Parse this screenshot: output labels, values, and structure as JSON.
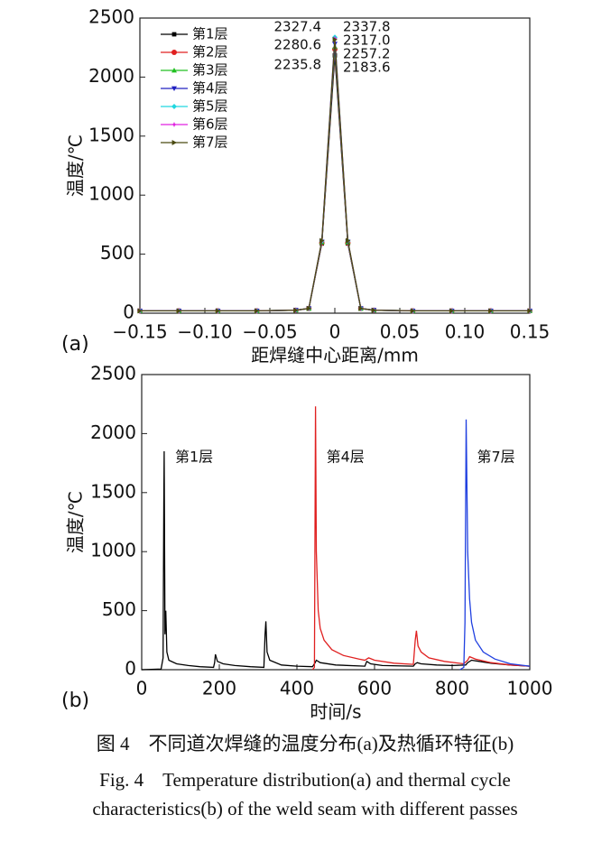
{
  "chart_data": [
    {
      "type": "line",
      "panel_label": "(a)",
      "xlabel": "距焊缝中心距离/mm",
      "ylabel": "温度/℃",
      "x": [
        -0.15,
        -0.12,
        -0.09,
        -0.06,
        -0.03,
        -0.02,
        -0.01,
        0,
        0.01,
        0.02,
        0.03,
        0.06,
        0.09,
        0.12,
        0.15
      ],
      "xlim": [
        -0.15,
        0.15
      ],
      "xticks": [
        {
          "value": -0.15,
          "label": "−0.15"
        },
        {
          "value": -0.1,
          "label": "−0.10"
        },
        {
          "value": -0.05,
          "label": "−0.05"
        },
        0,
        0.05,
        {
          "value": 0.1,
          "label": "0.10"
        },
        0.15
      ],
      "ylim": [
        0,
        2500
      ],
      "yticks": [
        0,
        500,
        1000,
        1500,
        2000,
        2500
      ],
      "legend": "upper left",
      "markers": true,
      "series": [
        {
          "name": "第1层",
          "color": "#000000",
          "marker": "square",
          "values": [
            20,
            20,
            20,
            20,
            25,
            40,
            590,
            2183.6,
            590,
            40,
            25,
            20,
            20,
            20,
            20
          ],
          "value_labels": [
            null,
            null,
            null,
            null,
            null,
            null,
            null,
            "2183.6",
            null,
            null,
            null,
            null,
            null,
            null,
            null
          ]
        },
        {
          "name": "第2层",
          "color": "#e02020",
          "marker": "circle",
          "values": [
            20,
            20,
            20,
            20,
            25,
            40,
            595,
            2235.8,
            595,
            40,
            25,
            20,
            20,
            20,
            20
          ],
          "value_labels": [
            null,
            null,
            null,
            null,
            null,
            null,
            null,
            "2235.8",
            null,
            null,
            null,
            null,
            null,
            null,
            null
          ]
        },
        {
          "name": "第3层",
          "color": "#20c020",
          "marker": "triangle-up",
          "values": [
            20,
            20,
            20,
            20,
            25,
            40,
            600,
            2257.2,
            600,
            40,
            25,
            20,
            20,
            20,
            20
          ],
          "value_labels": [
            null,
            null,
            null,
            null,
            null,
            null,
            null,
            "2257.2",
            null,
            null,
            null,
            null,
            null,
            null,
            null
          ]
        },
        {
          "name": "第4层",
          "color": "#2020c0",
          "marker": "triangle-down",
          "values": [
            20,
            20,
            20,
            20,
            25,
            40,
            605,
            2280.6,
            605,
            40,
            25,
            20,
            20,
            20,
            20
          ],
          "value_labels": [
            null,
            null,
            null,
            null,
            null,
            null,
            null,
            "2280.6",
            null,
            null,
            null,
            null,
            null,
            null,
            null
          ]
        },
        {
          "name": "第5层",
          "color": "#20d8e0",
          "marker": "diamond",
          "values": [
            20,
            20,
            20,
            20,
            25,
            40,
            610,
            2337.8,
            610,
            40,
            25,
            20,
            20,
            20,
            20
          ],
          "value_labels": [
            null,
            null,
            null,
            null,
            null,
            null,
            null,
            "2337.8",
            null,
            null,
            null,
            null,
            null,
            null,
            null
          ]
        },
        {
          "name": "第6层",
          "color": "#e020e0",
          "marker": "star",
          "values": [
            20,
            20,
            20,
            20,
            25,
            40,
            612,
            2327.4,
            612,
            40,
            25,
            20,
            20,
            20,
            20
          ],
          "value_labels": [
            null,
            null,
            null,
            null,
            null,
            null,
            null,
            "2327.4",
            null,
            null,
            null,
            null,
            null,
            null,
            null
          ]
        },
        {
          "name": "第7层",
          "color": "#4a4a10",
          "marker": "triangle-right",
          "values": [
            20,
            20,
            20,
            20,
            25,
            40,
            615,
            2317.0,
            615,
            40,
            25,
            20,
            20,
            20,
            20
          ],
          "value_labels": [
            null,
            null,
            null,
            null,
            null,
            null,
            null,
            "2317.0",
            null,
            null,
            null,
            null,
            null,
            null,
            null
          ]
        }
      ]
    },
    {
      "type": "line",
      "panel_label": "(b)",
      "xlabel": "时间/s",
      "ylabel": "温度/℃",
      "xlim": [
        0,
        1000
      ],
      "xticks": [
        0,
        200,
        400,
        600,
        800,
        1000
      ],
      "ylim": [
        0,
        2500
      ],
      "yticks": [
        0,
        500,
        1000,
        1500,
        2000,
        2500
      ],
      "series": [
        {
          "name": "第1层",
          "color": "#000000",
          "x": [
            0,
            50,
            55,
            57,
            58,
            60,
            62,
            65,
            70,
            90,
            120,
            150,
            185,
            188,
            190,
            195,
            210,
            240,
            280,
            315,
            318,
            320,
            323,
            330,
            360,
            400,
            440,
            447,
            450,
            460,
            500,
            575,
            580,
            590,
            620,
            700,
            705,
            710,
            720,
            760,
            800,
            835,
            840,
            850,
            870,
            900,
            950,
            1000
          ],
          "values": [
            0,
            5,
            100,
            1400,
            1850,
            300,
            500,
            150,
            80,
            50,
            35,
            25,
            20,
            60,
            130,
            70,
            50,
            35,
            25,
            20,
            300,
            410,
            150,
            80,
            40,
            30,
            25,
            60,
            80,
            60,
            40,
            30,
            70,
            50,
            35,
            30,
            50,
            60,
            50,
            40,
            35,
            40,
            60,
            80,
            70,
            55,
            40,
            30
          ]
        },
        {
          "name": "第4层",
          "color": "#e02020",
          "x": [
            440,
            445,
            448,
            450,
            455,
            460,
            470,
            490,
            520,
            560,
            575,
            580,
            585,
            600,
            650,
            700,
            705,
            708,
            712,
            720,
            740,
            780,
            830,
            840,
            845,
            860,
            900,
            950,
            1000
          ],
          "values": [
            0,
            20,
            2230,
            1000,
            500,
            350,
            250,
            170,
            120,
            90,
            80,
            90,
            100,
            80,
            55,
            45,
            250,
            330,
            200,
            150,
            100,
            70,
            50,
            80,
            110,
            90,
            60,
            40,
            30
          ]
        },
        {
          "name": "第7层",
          "color": "#2040e0",
          "x": [
            820,
            830,
            833,
            836,
            840,
            845,
            850,
            860,
            880,
            910,
            950,
            1000
          ],
          "values": [
            0,
            20,
            400,
            2120,
            1000,
            600,
            400,
            250,
            150,
            90,
            50,
            30
          ]
        }
      ]
    }
  ],
  "caption": {
    "zh": "图 4　不同道次焊缝的温度分布(a)及热循环特征(b)",
    "en": [
      "Fig. 4　Temperature distribution(a) and thermal cycle",
      "characteristics(b) of the weld seam with different passes"
    ]
  }
}
